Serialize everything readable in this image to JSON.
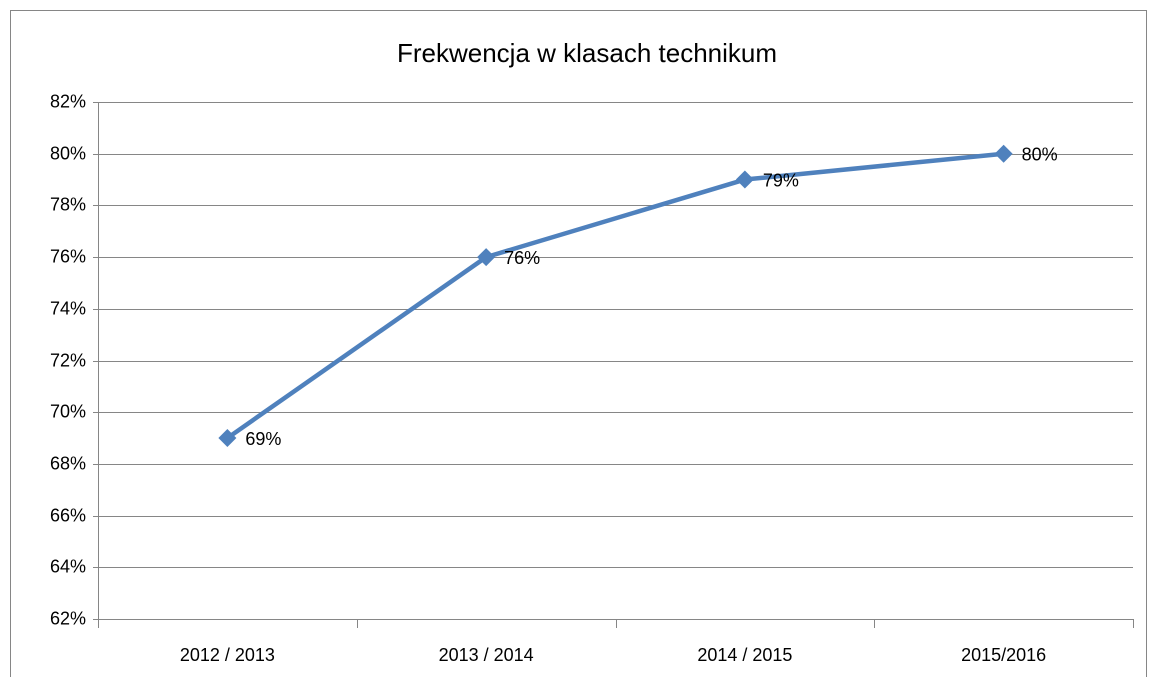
{
  "chart_data": {
    "type": "line",
    "title": "Frekwencja w klasach technikum",
    "categories": [
      "2012 / 2013",
      "2013 / 2014",
      "2014 / 2015",
      "2015/2016"
    ],
    "values": [
      69,
      76,
      79,
      80
    ],
    "value_labels": [
      "69%",
      "76%",
      "79%",
      "80%"
    ],
    "color": "#4f81bd",
    "ylim": [
      62,
      82
    ],
    "yticks": [
      {
        "value": 62,
        "label": "62%"
      },
      {
        "value": 64,
        "label": "64%"
      },
      {
        "value": 66,
        "label": "66%"
      },
      {
        "value": 68,
        "label": "68%"
      },
      {
        "value": 70,
        "label": "70%"
      },
      {
        "value": 72,
        "label": "72%"
      },
      {
        "value": 74,
        "label": "74%"
      },
      {
        "value": 76,
        "label": "76%"
      },
      {
        "value": 78,
        "label": "78%"
      },
      {
        "value": 80,
        "label": "80%"
      },
      {
        "value": 82,
        "label": "82%"
      }
    ],
    "grid": true
  }
}
